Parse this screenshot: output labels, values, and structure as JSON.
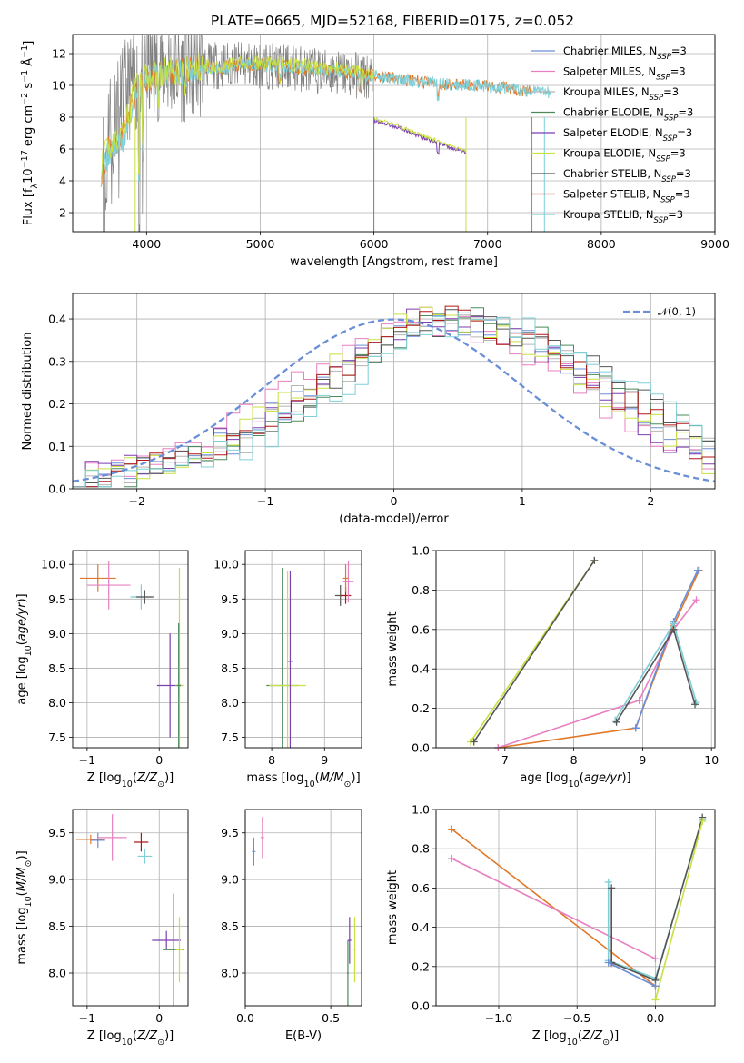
{
  "figure_title": "PLATE=0665, MJD=52168, FIBERID=0175, z=0.052",
  "colors": {
    "cm": "#6a8fd8",
    "sm": "#e87fc0",
    "km": "#b5b5b5",
    "ce": "#4a8a5a",
    "se": "#7b3fb0",
    "ke": "#c8e040",
    "cs": "#555555",
    "ss": "#b01818",
    "ks": "#7ecfd8",
    "orange": "#e07828",
    "gray": "#808080",
    "gauss": "#6a8fd8"
  },
  "legend_top": [
    {
      "key": "cm",
      "label": "Chabrier MILES, N",
      "sub": "SSP",
      "tail": "=3"
    },
    {
      "key": "sm",
      "label": "Salpeter MILES, N",
      "sub": "SSP",
      "tail": "=3"
    },
    {
      "key": "km",
      "label": "Kroupa MILES, N",
      "sub": "SSP",
      "tail": "=3"
    },
    {
      "key": "ce",
      "label": "Chabrier ELODIE, N",
      "sub": "SSP",
      "tail": "=3"
    },
    {
      "key": "se",
      "label": "Salpeter ELODIE, N",
      "sub": "SSP",
      "tail": "=3"
    },
    {
      "key": "ke",
      "label": "Kroupa ELODIE, N",
      "sub": "SSP",
      "tail": "=3"
    },
    {
      "key": "cs",
      "label": "Chabrier STELIB, N",
      "sub": "SSP",
      "tail": "=3"
    },
    {
      "key": "ss",
      "label": "Salpeter STELIB, N",
      "sub": "SSP",
      "tail": "=3"
    },
    {
      "key": "ks",
      "label": "Kroupa STELIB, N",
      "sub": "SSP",
      "tail": "=3"
    }
  ],
  "legend_hist": {
    "label": "𝒩(0, 1)"
  },
  "chart_data": [
    {
      "id": "spectrum",
      "type": "line",
      "xlabel": "wavelength [Angstrom, rest frame]",
      "ylabel": "Flux [f",
      "xlim": [
        3350,
        9000
      ],
      "ylim": [
        0.8,
        13.2
      ],
      "xticks": [
        "4000",
        "5000",
        "6000",
        "7000",
        "8000",
        "9000"
      ],
      "yticks": [
        "2",
        "4",
        "6",
        "8",
        "10",
        "12"
      ],
      "series": [
        {
          "name": "data",
          "color": "gray",
          "x": [
            3620,
            3700,
            3800,
            3900,
            4000,
            4100,
            4200,
            4300,
            4400,
            4500,
            4700,
            4900,
            5100,
            5300,
            5500,
            5700,
            5900,
            5990
          ],
          "y": [
            7.5,
            8.5,
            9.5,
            10.2,
            10.8,
            11.0,
            11.2,
            10.9,
            11.0,
            11.2,
            11.3,
            11.3,
            11.2,
            11.1,
            10.9,
            10.8,
            10.6,
            10.5
          ]
        },
        {
          "name": "model_full",
          "color": "orange",
          "x": [
            3600,
            3650,
            3700,
            3800,
            3900,
            4000,
            4100,
            4300,
            4500,
            4800,
            5000,
            5200,
            5500,
            5800,
            6000,
            6300,
            6600,
            6900,
            7200,
            7400
          ],
          "y": [
            4.5,
            5.8,
            6.3,
            7.0,
            9.5,
            10.4,
            10.7,
            10.8,
            11.0,
            11.2,
            11.3,
            11.2,
            11.0,
            10.8,
            10.6,
            10.3,
            10.1,
            10.0,
            9.8,
            9.6
          ]
        },
        {
          "name": "model_cut",
          "color": "se",
          "x": [
            6000,
            6200,
            6400,
            6600,
            6700,
            6810
          ],
          "y": [
            7.8,
            7.4,
            6.8,
            6.3,
            6.0,
            5.8
          ]
        },
        {
          "name": "model_ks",
          "color": "ks",
          "x": [
            3600,
            3700,
            3800,
            3900,
            4000,
            4100,
            4300,
            4500,
            4800,
            5000,
            5200,
            5500,
            5800,
            6000,
            6300,
            6600,
            6900,
            7200,
            7400,
            7600
          ],
          "y": [
            5.0,
            6.0,
            6.5,
            9.3,
            10.4,
            10.7,
            10.8,
            11.0,
            11.2,
            11.3,
            11.2,
            11.0,
            10.8,
            10.6,
            10.3,
            10.1,
            10.0,
            9.8,
            9.6,
            9.5
          ]
        }
      ]
    },
    {
      "id": "residuals",
      "type": "line",
      "xlabel": "(data-model)/error",
      "ylabel": "Normed distribution",
      "xlim": [
        -2.5,
        2.5
      ],
      "ylim": [
        0,
        0.46
      ],
      "xticks": [
        "−2",
        "−1",
        "0",
        "1",
        "2"
      ],
      "yticks": [
        "0.0",
        "0.1",
        "0.2",
        "0.3",
        "0.4"
      ],
      "gaussian": {
        "name": "𝒩(0, 1)",
        "mu": 0,
        "sigma": 1
      },
      "bin_width": 0.1,
      "hist_base": [
        0.02,
        0.025,
        0.03,
        0.035,
        0.04,
        0.045,
        0.05,
        0.06,
        0.07,
        0.08,
        0.09,
        0.1,
        0.11,
        0.13,
        0.15,
        0.17,
        0.19,
        0.21,
        0.23,
        0.25,
        0.27,
        0.29,
        0.31,
        0.33,
        0.35,
        0.37,
        0.38,
        0.39,
        0.4,
        0.4,
        0.395,
        0.39,
        0.38,
        0.37,
        0.36,
        0.35,
        0.34,
        0.32,
        0.3,
        0.28,
        0.26,
        0.24,
        0.22,
        0.2,
        0.18,
        0.16,
        0.14,
        0.12,
        0.1,
        0.085,
        0.07,
        0.06,
        0.05,
        0.04,
        0.035,
        0.03,
        0.025,
        0.02
      ],
      "hist_x0": -2.5
    },
    {
      "id": "z_age",
      "type": "scatter",
      "xlabel": "Z [log",
      "ylabel": "age  [log",
      "xlim": [
        -1.2,
        0.4
      ],
      "ylim": [
        7.35,
        10.2
      ],
      "xticks": [
        "−1",
        "0"
      ],
      "yticks": [
        "7.5",
        "8.0",
        "8.5",
        "9.0",
        "9.5",
        "10.0"
      ],
      "points": [
        {
          "c": "orange",
          "x": -0.85,
          "y": 9.8,
          "ex": 0.25,
          "ey": 0.2
        },
        {
          "c": "sm",
          "x": -0.7,
          "y": 9.7,
          "ex": 0.3,
          "ey": 0.35
        },
        {
          "c": "ks",
          "x": -0.25,
          "y": 9.53,
          "ex": 0.15,
          "ey": 0.18
        },
        {
          "c": "cs",
          "x": -0.2,
          "y": 9.53,
          "ex": 0.12,
          "ey": 0.1
        },
        {
          "c": "se",
          "x": 0.15,
          "y": 8.25,
          "ex": 0.18,
          "ey": 0.75
        },
        {
          "c": "ke",
          "x": 0.28,
          "y": 8.25,
          "ex": 0.05,
          "ey": 1.7
        },
        {
          "c": "ce",
          "x": 0.27,
          "y": 8.25,
          "ex": 0.03,
          "ey": 0.9
        }
      ]
    },
    {
      "id": "mass_age",
      "type": "scatter",
      "xlabel": "mass [log",
      "ylabel": "",
      "xlim": [
        7.5,
        9.7
      ],
      "ylim": [
        7.35,
        10.2
      ],
      "xticks": [
        "8",
        "9"
      ],
      "yticks": [
        "7.5",
        "8.0",
        "8.5",
        "9.0",
        "9.5",
        "10.0"
      ],
      "points": [
        {
          "c": "ce",
          "x": 8.2,
          "y": 8.25,
          "ex": 0.3,
          "ey": 1.7
        },
        {
          "c": "ke",
          "x": 8.3,
          "y": 8.25,
          "ex": 0.35,
          "ey": 1.65
        },
        {
          "c": "se",
          "x": 8.35,
          "y": 8.6,
          "ex": 0.05,
          "ey": 1.3
        },
        {
          "c": "cs",
          "x": 9.3,
          "y": 9.55,
          "ex": 0.1,
          "ey": 0.15
        },
        {
          "c": "ss",
          "x": 9.4,
          "y": 9.55,
          "ex": 0.1,
          "ey": 0.12
        },
        {
          "c": "sm",
          "x": 9.45,
          "y": 9.75,
          "ex": 0.1,
          "ey": 0.3
        },
        {
          "c": "orange",
          "x": 9.4,
          "y": 9.8,
          "ex": 0.05,
          "ey": 0.2
        }
      ]
    },
    {
      "id": "age_weight",
      "type": "line",
      "xlabel": "age  [log",
      "ylabel": "mass weight",
      "xlim": [
        6.0,
        10.05
      ],
      "ylim": [
        0,
        1
      ],
      "xticks": [
        "7",
        "8",
        "9",
        "10"
      ],
      "yticks": [
        "0.0",
        "0.2",
        "0.4",
        "0.6",
        "0.8",
        "1.0"
      ],
      "series": [
        {
          "c": "ke",
          "x": [
            6.5,
            8.3
          ],
          "y": [
            0.03,
            0.95
          ]
        },
        {
          "c": "cs",
          "x": [
            6.55,
            8.3
          ],
          "y": [
            0.03,
            0.95
          ]
        },
        {
          "c": "orange",
          "x": [
            6.9,
            8.9,
            9.45,
            9.82
          ],
          "y": [
            0.0,
            0.1,
            0.62,
            0.9
          ]
        },
        {
          "c": "sm",
          "x": [
            6.9,
            8.95,
            9.45,
            9.78
          ],
          "y": [
            0.0,
            0.24,
            0.6,
            0.75
          ]
        },
        {
          "c": "cm",
          "x": [
            8.9,
            9.45,
            9.8
          ],
          "y": [
            0.1,
            0.64,
            0.9
          ]
        },
        {
          "c": "ks",
          "x": [
            8.6,
            9.45,
            9.78
          ],
          "y": [
            0.14,
            0.63,
            0.23
          ]
        },
        {
          "c": "cs",
          "x": [
            8.62,
            9.45,
            9.76
          ],
          "y": [
            0.13,
            0.6,
            0.22
          ]
        }
      ]
    },
    {
      "id": "z_mass",
      "type": "scatter",
      "xlabel": "Z [log",
      "ylabel": "mass [log",
      "xlim": [
        -1.2,
        0.4
      ],
      "ylim": [
        7.65,
        9.75
      ],
      "xticks": [
        "−1",
        "0"
      ],
      "yticks": [
        "8.0",
        "8.5",
        "9.0",
        "9.5"
      ],
      "points": [
        {
          "c": "orange",
          "x": -0.95,
          "y": 9.43,
          "ex": 0.2,
          "ey": 0.05
        },
        {
          "c": "cm",
          "x": -0.85,
          "y": 9.42,
          "ex": 0.1,
          "ey": 0.08
        },
        {
          "c": "sm",
          "x": -0.65,
          "y": 9.45,
          "ex": 0.2,
          "ey": 0.25
        },
        {
          "c": "ss",
          "x": -0.25,
          "y": 9.4,
          "ex": 0.1,
          "ey": 0.1
        },
        {
          "c": "ks",
          "x": -0.2,
          "y": 9.25,
          "ex": 0.1,
          "ey": 0.08
        },
        {
          "c": "se",
          "x": 0.1,
          "y": 8.35,
          "ex": 0.2,
          "ey": 0.1
        },
        {
          "c": "ce",
          "x": 0.2,
          "y": 8.25,
          "ex": 0.15,
          "ey": 0.6
        },
        {
          "c": "ke",
          "x": 0.28,
          "y": 8.25,
          "ex": 0.05,
          "ey": 0.35
        }
      ]
    },
    {
      "id": "ebv_mass",
      "type": "scatter",
      "xlabel": "E(B-V)",
      "ylabel": "",
      "xlim": [
        0,
        0.68
      ],
      "ylim": [
        7.65,
        9.75
      ],
      "xticks": [
        "0.0",
        "0.5"
      ],
      "yticks": [
        "8.0",
        "8.5",
        "9.0",
        "9.5"
      ],
      "points": [
        {
          "c": "cm",
          "x": 0.05,
          "y": 9.3,
          "ex": 0.01,
          "ey": 0.15
        },
        {
          "c": "sm",
          "x": 0.1,
          "y": 9.45,
          "ex": 0.01,
          "ey": 0.22
        },
        {
          "c": "ce",
          "x": 0.6,
          "y": 8.0,
          "ex": 0.005,
          "ey": 0.35
        },
        {
          "c": "se",
          "x": 0.61,
          "y": 8.35,
          "ex": 0.01,
          "ey": 0.25
        },
        {
          "c": "ke",
          "x": 0.64,
          "y": 8.25,
          "ex": 0.005,
          "ey": 0.35
        }
      ]
    },
    {
      "id": "z_weight",
      "type": "line",
      "xlabel": "Z [log",
      "ylabel": "mass weight",
      "xlim": [
        -1.4,
        0.38
      ],
      "ylim": [
        0,
        1
      ],
      "xticks": [
        "−1.0",
        "−0.5",
        "0.0"
      ],
      "yticks": [
        "0.0",
        "0.2",
        "0.4",
        "0.6",
        "0.8",
        "1.0"
      ],
      "series": [
        {
          "c": "orange",
          "x": [
            -1.3,
            0.0
          ],
          "y": [
            0.9,
            0.1
          ]
        },
        {
          "c": "sm",
          "x": [
            -1.3,
            0.0
          ],
          "y": [
            0.75,
            0.24
          ]
        },
        {
          "c": "ks",
          "x": [
            -0.3,
            -0.3,
            0.0,
            0.3
          ],
          "y": [
            0.63,
            0.23,
            0.14,
            0.95
          ]
        },
        {
          "c": "cs",
          "x": [
            -0.28,
            -0.28,
            0.0,
            0.3
          ],
          "y": [
            0.6,
            0.22,
            0.13,
            0.96
          ]
        },
        {
          "c": "ke",
          "x": [
            0.0,
            0.3
          ],
          "y": [
            0.03,
            0.94
          ]
        },
        {
          "c": "cm",
          "x": [
            -0.3,
            0.0
          ],
          "y": [
            0.22,
            0.1
          ]
        }
      ]
    }
  ]
}
